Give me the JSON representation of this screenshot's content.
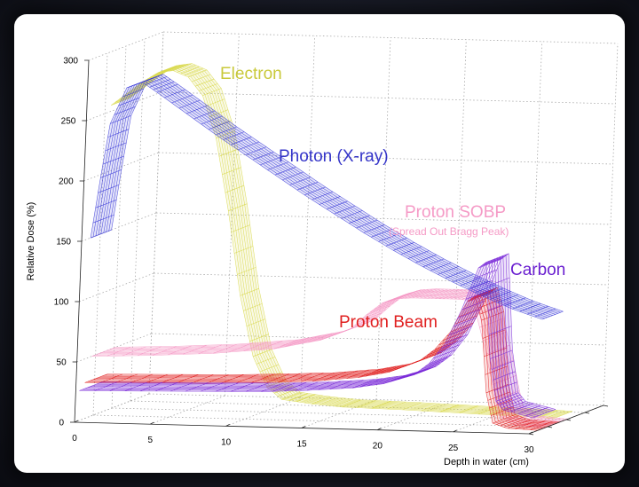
{
  "chart_data": {
    "type": "line",
    "title": "",
    "xlabel": "Depth in water (cm)",
    "ylabel": "Relative Dose (%)",
    "xlim": [
      0,
      30
    ],
    "ylim": [
      0,
      300
    ],
    "x_ticks": [
      "0",
      "5",
      "10",
      "15",
      "20",
      "25",
      "30"
    ],
    "y_ticks": [
      "0",
      "50",
      "100",
      "150",
      "200",
      "250",
      "300"
    ],
    "grid": true,
    "series": [
      {
        "name": "Electron",
        "color": "#d8d84a",
        "x": [
          0,
          1,
          2,
          3,
          4,
          5,
          6,
          7,
          8,
          9,
          10,
          11,
          12,
          14,
          16,
          20,
          25,
          28,
          30
        ],
        "y": [
          255,
          265,
          275,
          283,
          285,
          280,
          265,
          230,
          170,
          100,
          50,
          25,
          15,
          12,
          10,
          9,
          7,
          6,
          5
        ]
      },
      {
        "name": "Photon (X-ray)",
        "color": "#3838d8",
        "x": [
          0,
          0.5,
          1,
          2,
          3,
          4,
          6,
          8,
          10,
          12,
          14,
          16,
          18,
          20,
          22,
          24,
          26,
          28,
          30
        ],
        "y": [
          150,
          200,
          245,
          275,
          280,
          272,
          255,
          238,
          222,
          206,
          190,
          175,
          160,
          146,
          133,
          121,
          110,
          100,
          92
        ]
      },
      {
        "name": "Proton SOBP",
        "sublabel": "(Spread Out Bragg Peak)",
        "color": "#f59ac6",
        "x": [
          0,
          4,
          8,
          12,
          15,
          17,
          18,
          19,
          20,
          21,
          22,
          23,
          24,
          25,
          26,
          27,
          28,
          30
        ],
        "y": [
          50,
          52,
          55,
          60,
          68,
          78,
          90,
          100,
          104,
          105,
          105,
          105,
          105,
          104,
          60,
          10,
          2,
          0
        ]
      },
      {
        "name": "Proton Beam",
        "color": "#e02020",
        "x": [
          0,
          4,
          8,
          12,
          15,
          18,
          20,
          22,
          23,
          24,
          25,
          25.5,
          26,
          26.5,
          27,
          28,
          30
        ],
        "y": [
          30,
          31,
          32,
          34,
          36,
          40,
          45,
          55,
          65,
          80,
          105,
          110,
          90,
          30,
          5,
          1,
          0
        ]
      },
      {
        "name": "Carbon",
        "color": "#7a2ad8",
        "x": [
          0,
          4,
          8,
          12,
          15,
          18,
          20,
          22,
          23,
          24,
          25,
          26,
          26.5,
          27,
          27.5,
          28,
          30
        ],
        "y": [
          25,
          26,
          27,
          28,
          30,
          33,
          37,
          45,
          55,
          72,
          100,
          135,
          140,
          60,
          25,
          18,
          12
        ]
      }
    ]
  }
}
